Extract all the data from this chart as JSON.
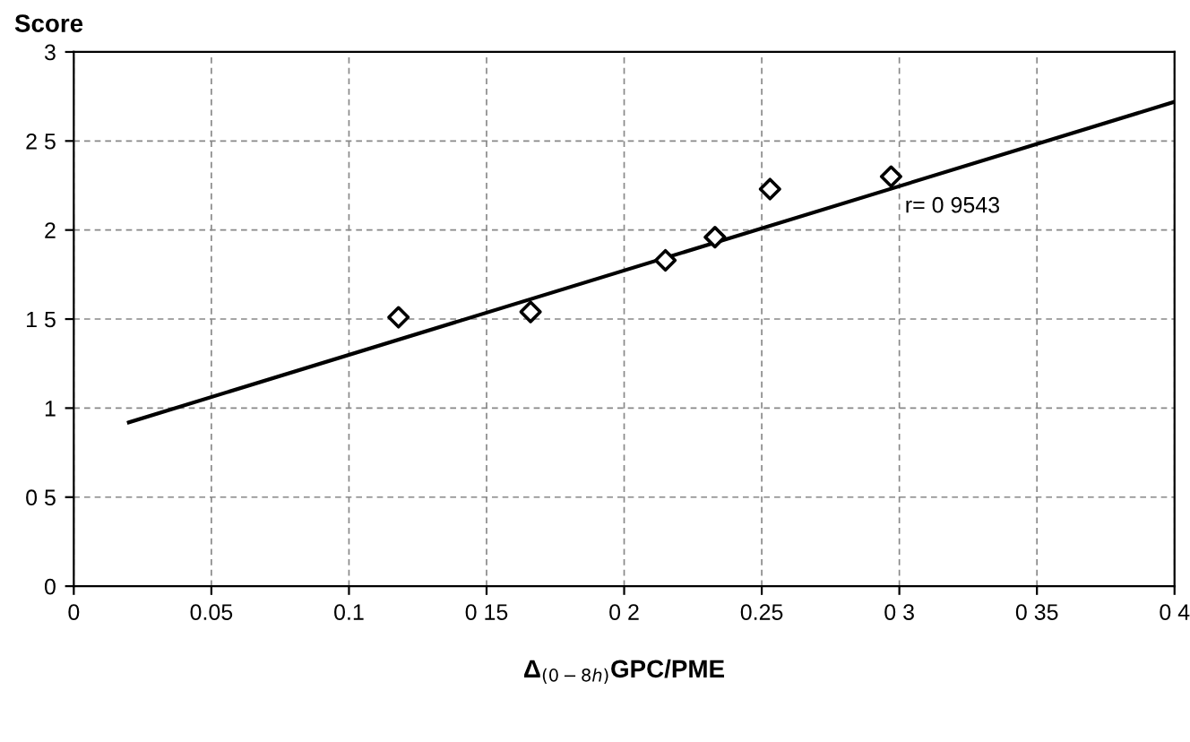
{
  "chart_data": {
    "type": "scatter",
    "ylabel": "Score",
    "xlabel": "Δ$_{(0−8h)}$GPC/PME",
    "xlim": [
      0,
      0.4
    ],
    "ylim": [
      0,
      3
    ],
    "xticks": [
      0,
      {
        "value": 0.05,
        "label": "0.05"
      },
      {
        "value": 0.1,
        "label": "0.1"
      },
      {
        "value": 0.15,
        "label": "0 15"
      },
      {
        "value": 0.2,
        "label": "0 2"
      },
      {
        "value": 0.25,
        "label": "0.25"
      },
      {
        "value": 0.3,
        "label": "0 3"
      },
      {
        "value": 0.35,
        "label": "0 35"
      },
      {
        "value": 0.4,
        "label": "0 4"
      }
    ],
    "yticks": [
      0,
      {
        "value": 0.5,
        "label": "0 5"
      },
      1,
      {
        "value": 1.5,
        "label": "1 5"
      },
      2,
      {
        "value": 2.5,
        "label": "2 5"
      },
      3
    ],
    "grid": true,
    "series": [
      {
        "marker": "diamond",
        "color": "#000000",
        "x": [
          0.118,
          0.166,
          0.215,
          0.233,
          0.253,
          0.297
        ],
        "values": [
          1.51,
          1.54,
          1.83,
          1.96,
          2.23,
          2.3
        ]
      },
      {
        "type": "line",
        "color": "#000000",
        "x": [
          0.02,
          0.4
        ],
        "values": [
          0.92,
          2.72
        ]
      }
    ],
    "annotations": [
      "r= 0 9543"
    ]
  }
}
